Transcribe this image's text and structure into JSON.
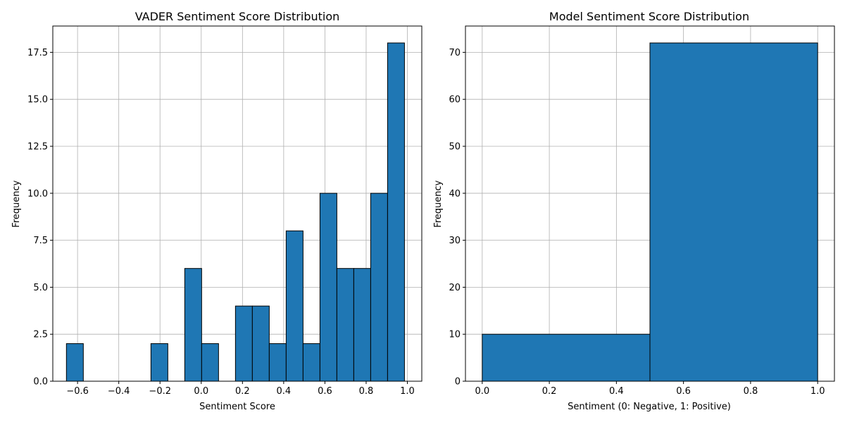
{
  "chart_data": [
    {
      "type": "bar",
      "title": "VADER Sentiment Score Distribution",
      "xlabel": "Sentiment Score",
      "ylabel": "Frequency",
      "xlim": [
        -0.72,
        1.07
      ],
      "ylim": [
        0,
        18.9
      ],
      "grid": true,
      "bar_color": "#1f77b4",
      "edge_color": "#000000",
      "x_ticks": [
        -0.6,
        -0.4,
        -0.2,
        0.0,
        0.2,
        0.4,
        0.6,
        0.8,
        1.0
      ],
      "x_tick_labels": [
        "−0.6",
        "−0.4",
        "−0.2",
        "0.0",
        "0.2",
        "0.4",
        "0.6",
        "0.8",
        "1.0"
      ],
      "y_ticks": [
        0,
        2.5,
        5,
        7.5,
        10,
        12.5,
        15,
        17.5
      ],
      "y_tick_labels": [
        "0.0",
        "2.5",
        "5.0",
        "7.5",
        "10.0",
        "12.5",
        "15.0",
        "17.5"
      ],
      "bins": [
        {
          "x0": -0.654,
          "x1": -0.572,
          "count": 2
        },
        {
          "x0": -0.572,
          "x1": -0.49,
          "count": 0
        },
        {
          "x0": -0.49,
          "x1": -0.408,
          "count": 0
        },
        {
          "x0": -0.408,
          "x1": -0.326,
          "count": 0
        },
        {
          "x0": -0.326,
          "x1": -0.244,
          "count": 0
        },
        {
          "x0": -0.244,
          "x1": -0.162,
          "count": 2
        },
        {
          "x0": -0.162,
          "x1": -0.08,
          "count": 0
        },
        {
          "x0": -0.08,
          "x1": 0.002,
          "count": 6
        },
        {
          "x0": 0.002,
          "x1": 0.084,
          "count": 2
        },
        {
          "x0": 0.084,
          "x1": 0.166,
          "count": 0
        },
        {
          "x0": 0.166,
          "x1": 0.248,
          "count": 4
        },
        {
          "x0": 0.248,
          "x1": 0.33,
          "count": 4
        },
        {
          "x0": 0.33,
          "x1": 0.412,
          "count": 2
        },
        {
          "x0": 0.412,
          "x1": 0.494,
          "count": 8
        },
        {
          "x0": 0.494,
          "x1": 0.576,
          "count": 2
        },
        {
          "x0": 0.576,
          "x1": 0.658,
          "count": 10
        },
        {
          "x0": 0.658,
          "x1": 0.74,
          "count": 6
        },
        {
          "x0": 0.74,
          "x1": 0.822,
          "count": 6
        },
        {
          "x0": 0.822,
          "x1": 0.904,
          "count": 10
        },
        {
          "x0": 0.904,
          "x1": 0.986,
          "count": 18
        }
      ]
    },
    {
      "type": "bar",
      "title": "Model Sentiment Score Distribution",
      "xlabel": "Sentiment (0: Negative, 1: Positive)",
      "ylabel": "Frequency",
      "xlim": [
        -0.05,
        1.05
      ],
      "ylim": [
        0,
        75.6
      ],
      "grid": true,
      "bar_color": "#1f77b4",
      "edge_color": "#000000",
      "x_ticks": [
        0.0,
        0.2,
        0.4,
        0.6,
        0.8,
        1.0
      ],
      "x_tick_labels": [
        "0.0",
        "0.2",
        "0.4",
        "0.6",
        "0.8",
        "1.0"
      ],
      "y_ticks": [
        0,
        10,
        20,
        30,
        40,
        50,
        60,
        70
      ],
      "y_tick_labels": [
        "0",
        "10",
        "20",
        "30",
        "40",
        "50",
        "60",
        "70"
      ],
      "bins": [
        {
          "x0": 0.0,
          "x1": 0.5,
          "count": 10
        },
        {
          "x0": 0.5,
          "x1": 1.0,
          "count": 72
        }
      ]
    }
  ]
}
